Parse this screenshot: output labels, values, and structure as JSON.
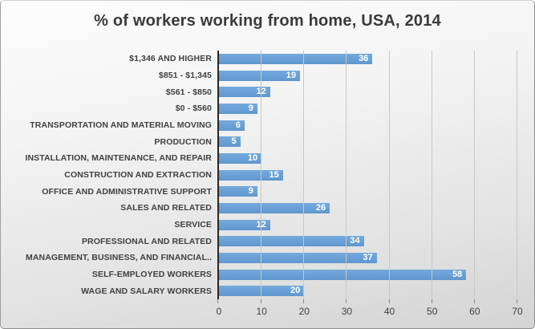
{
  "chart_data": {
    "type": "bar",
    "orientation": "horizontal",
    "title": "% of workers working from home, USA, 2014",
    "categories": [
      "$1,346 AND HIGHER",
      "$851 - $1,345",
      "$561 - $850",
      "$0 - $560",
      "TRANSPORTATION AND MATERIAL MOVING",
      "PRODUCTION",
      "INSTALLATION, MAINTENANCE, AND REPAIR",
      "CONSTRUCTION AND EXTRACTION",
      "OFFICE AND ADMINISTRATIVE SUPPORT",
      "SALES AND RELATED",
      "SERVICE",
      "PROFESSIONAL AND RELATED",
      "MANAGEMENT, BUSINESS, AND FINANCIAL..",
      "SELF-EMPLOYED WORKERS",
      "WAGE AND SALARY WORKERS"
    ],
    "values": [
      36,
      19,
      12,
      9,
      6,
      5,
      10,
      15,
      9,
      26,
      12,
      34,
      37,
      58,
      20
    ],
    "xlim": [
      0,
      70
    ],
    "xticks": [
      0,
      10,
      20,
      30,
      40,
      50,
      60,
      70
    ],
    "grid": true,
    "legend": false,
    "value_labels_position": "inside-end",
    "colors": {
      "bar": "#6BA1D6",
      "bar_top": "#74A9DC",
      "bar_bottom": "#5F97CD",
      "value_label": "#FFFFFF",
      "axis_line": "#262626",
      "gridline": "#C8C8C8",
      "text": "#404040"
    }
  }
}
